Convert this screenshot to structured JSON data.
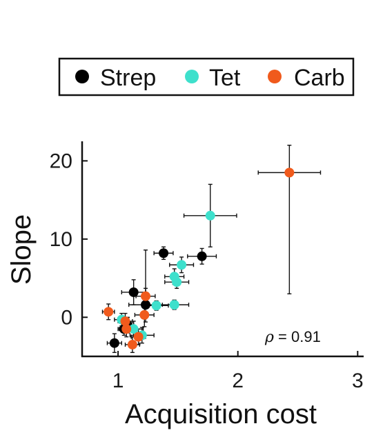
{
  "chart_data": {
    "type": "scatter",
    "xlabel": "Acquisition cost",
    "ylabel": "Slope",
    "xlim": [
      0.7,
      3.05
    ],
    "ylim": [
      -5,
      22.5
    ],
    "xticks": [
      1,
      2,
      3
    ],
    "yticks": [
      0,
      10,
      20
    ],
    "legend": {
      "placement": "top",
      "boxed": true
    },
    "annotation": {
      "symbol": "ρ",
      "text": " = 0.91"
    },
    "series": [
      {
        "name": "Strep",
        "color": "#000000",
        "points": [
          {
            "x": 1.38,
            "y": 8.2,
            "xerr": 0.08,
            "yerr_lo": 0.8,
            "yerr_hi": 0.8
          },
          {
            "x": 1.7,
            "y": 7.8,
            "xerr": 0.12,
            "yerr_lo": 1.0,
            "yerr_hi": 1.0
          },
          {
            "x": 1.13,
            "y": 3.2,
            "xerr": 0.1,
            "yerr_lo": 1.6,
            "yerr_hi": 1.6
          },
          {
            "x": 1.23,
            "y": 1.6,
            "xerr": 0.14,
            "yerr_lo": 2.2,
            "yerr_hi": 7.0
          },
          {
            "x": 1.08,
            "y": -1.0,
            "xerr": 0.05,
            "yerr_lo": 1.0,
            "yerr_hi": 1.0
          },
          {
            "x": 1.05,
            "y": -1.5,
            "xerr": 0.05,
            "yerr_lo": 0.8,
            "yerr_hi": 0.8
          },
          {
            "x": 0.97,
            "y": -3.3,
            "xerr": 0.06,
            "yerr_lo": 1.2,
            "yerr_hi": 1.2
          }
        ]
      },
      {
        "name": "Tet",
        "color": "#3ee0cc",
        "points": [
          {
            "x": 1.77,
            "y": 13.0,
            "xerr": 0.22,
            "yerr_lo": 4.0,
            "yerr_hi": 4.0
          },
          {
            "x": 1.53,
            "y": 6.7,
            "xerr": 0.1,
            "yerr_lo": 1.0,
            "yerr_hi": 1.0
          },
          {
            "x": 1.47,
            "y": 5.2,
            "xerr": 0.08,
            "yerr_lo": 1.0,
            "yerr_hi": 1.0
          },
          {
            "x": 1.49,
            "y": 4.5,
            "xerr": 0.1,
            "yerr_lo": 0.8,
            "yerr_hi": 0.8
          },
          {
            "x": 1.47,
            "y": 1.6,
            "xerr": 0.12,
            "yerr_lo": 0.6,
            "yerr_hi": 0.6
          },
          {
            "x": 1.32,
            "y": 1.5,
            "xerr": 0.1,
            "yerr_lo": 0.6,
            "yerr_hi": 0.6
          },
          {
            "x": 1.03,
            "y": -0.3,
            "xerr": 0.06,
            "yerr_lo": 0.8,
            "yerr_hi": 0.8
          },
          {
            "x": 1.13,
            "y": -1.5,
            "xerr": 0.08,
            "yerr_lo": 1.0,
            "yerr_hi": 1.0
          },
          {
            "x": 1.2,
            "y": -2.3,
            "xerr": 0.1,
            "yerr_lo": 1.0,
            "yerr_hi": 1.0
          }
        ]
      },
      {
        "name": "Carb",
        "color": "#f05a1c",
        "points": [
          {
            "x": 2.43,
            "y": 18.5,
            "xerr": 0.26,
            "yerr_lo": 15.5,
            "yerr_hi": 3.5
          },
          {
            "x": 1.23,
            "y": 2.7,
            "xerr": 0.08,
            "yerr_lo": 1.0,
            "yerr_hi": 1.0
          },
          {
            "x": 0.92,
            "y": 0.7,
            "xerr": 0.05,
            "yerr_lo": 1.0,
            "yerr_hi": 1.0
          },
          {
            "x": 1.22,
            "y": 0.3,
            "xerr": 0.08,
            "yerr_lo": 1.5,
            "yerr_hi": 1.5
          },
          {
            "x": 1.06,
            "y": -0.5,
            "xerr": 0.06,
            "yerr_lo": 1.0,
            "yerr_hi": 1.0
          },
          {
            "x": 1.07,
            "y": -1.5,
            "xerr": 0.06,
            "yerr_lo": 1.0,
            "yerr_hi": 1.0
          },
          {
            "x": 1.17,
            "y": -2.5,
            "xerr": 0.06,
            "yerr_lo": 1.0,
            "yerr_hi": 1.0
          },
          {
            "x": 1.12,
            "y": -3.5,
            "xerr": 0.06,
            "yerr_lo": 1.0,
            "yerr_hi": 1.0
          }
        ]
      }
    ]
  }
}
